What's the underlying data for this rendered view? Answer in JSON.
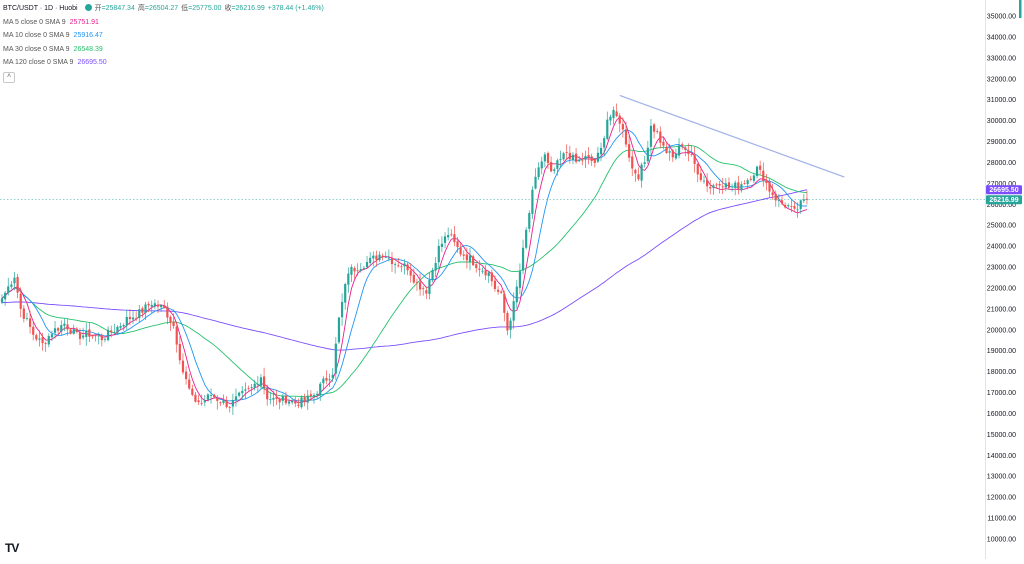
{
  "header": {
    "symbol": "BTC/USDT · 1D · Huobi",
    "open_label": "开",
    "open": "=25847.34",
    "high_label": "高",
    "high": "=26504.27",
    "low_label": "低",
    "low": "=25775.00",
    "close_label": "收",
    "close": "=26216.99",
    "change": "+378.44 (+1.46%)"
  },
  "legend": [
    {
      "label": "MA 5 close 0 SMA 9",
      "value": "25751.91",
      "color": "#e91e8c"
    },
    {
      "label": "MA 10 close 0 SMA 9",
      "value": "25916.47",
      "color": "#2196f3"
    },
    {
      "label": "MA 30 close 0 SMA 9",
      "value": "26548.39",
      "color": "#26c06b"
    },
    {
      "label": "MA 120 close 0 SMA 9",
      "value": "26695.50",
      "color": "#7c4dff"
    }
  ],
  "collapse_icon": "chevron-up-icon",
  "logo": "TV",
  "price_tags": {
    "ma120": {
      "value": "26695.50",
      "color": "#7c4dff"
    },
    "last": {
      "value": "26216.99",
      "color": "#26a69a"
    }
  },
  "colors": {
    "up": "#26a69a",
    "down": "#ef5350",
    "trendline": "#9fb0e8"
  },
  "chart_data": {
    "type": "candlestick",
    "y_axis": {
      "ticks": [
        "10000.00",
        "11000.00",
        "12000.00",
        "13000.00",
        "14000.00",
        "15000.00",
        "16000.00",
        "17000.00",
        "18000.00",
        "19000.00",
        "20000.00",
        "21000.00",
        "22000.00",
        "23000.00",
        "24000.00",
        "25000.00",
        "26000.00",
        "27000.00",
        "28000.00",
        "29000.00",
        "30000.00",
        "31000.00",
        "32000.00",
        "33000.00",
        "34000.00",
        "35000.00"
      ],
      "range": [
        10000,
        35000
      ]
    },
    "price_keypoints": [
      [
        0,
        21500
      ],
      [
        4,
        22600
      ],
      [
        6,
        21000
      ],
      [
        10,
        19800
      ],
      [
        13,
        19300
      ],
      [
        16,
        19900
      ],
      [
        20,
        20300
      ],
      [
        24,
        19700
      ],
      [
        28,
        19800
      ],
      [
        32,
        19600
      ],
      [
        36,
        20000
      ],
      [
        40,
        20500
      ],
      [
        44,
        20800
      ],
      [
        48,
        21300
      ],
      [
        52,
        21000
      ],
      [
        55,
        20200
      ],
      [
        58,
        18000
      ],
      [
        61,
        16700
      ],
      [
        64,
        16500
      ],
      [
        67,
        16900
      ],
      [
        70,
        16600
      ],
      [
        73,
        16400
      ],
      [
        76,
        16800
      ],
      [
        80,
        17200
      ],
      [
        83,
        17800
      ],
      [
        85,
        16800
      ],
      [
        88,
        16600
      ],
      [
        91,
        16700
      ],
      [
        94,
        16500
      ],
      [
        97,
        16600
      ],
      [
        100,
        16900
      ],
      [
        103,
        17500
      ],
      [
        106,
        18000
      ],
      [
        108,
        20500
      ],
      [
        111,
        22800
      ],
      [
        114,
        23000
      ],
      [
        118,
        23300
      ],
      [
        122,
        23700
      ],
      [
        126,
        23200
      ],
      [
        130,
        23000
      ],
      [
        133,
        22200
      ],
      [
        136,
        21900
      ],
      [
        140,
        23900
      ],
      [
        143,
        24600
      ],
      [
        145,
        24100
      ],
      [
        147,
        23700
      ],
      [
        150,
        23400
      ],
      [
        153,
        23000
      ],
      [
        156,
        22700
      ],
      [
        158,
        22000
      ],
      [
        160,
        21600
      ],
      [
        162,
        20000
      ],
      [
        164,
        21200
      ],
      [
        166,
        22800
      ],
      [
        168,
        24700
      ],
      [
        170,
        26500
      ],
      [
        172,
        27800
      ],
      [
        174,
        28300
      ],
      [
        176,
        27400
      ],
      [
        178,
        27900
      ],
      [
        181,
        28500
      ],
      [
        184,
        28000
      ],
      [
        187,
        28200
      ],
      [
        190,
        28000
      ],
      [
        192,
        28600
      ],
      [
        194,
        30100
      ],
      [
        196,
        30300
      ],
      [
        198,
        30000
      ],
      [
        200,
        29000
      ],
      [
        202,
        27700
      ],
      [
        204,
        27400
      ],
      [
        206,
        28000
      ],
      [
        208,
        29800
      ],
      [
        210,
        29400
      ],
      [
        212,
        28700
      ],
      [
        215,
        28200
      ],
      [
        218,
        28900
      ],
      [
        221,
        28200
      ],
      [
        224,
        27300
      ],
      [
        227,
        26800
      ],
      [
        230,
        27100
      ],
      [
        233,
        26800
      ],
      [
        236,
        26900
      ],
      [
        239,
        27200
      ],
      [
        242,
        27700
      ],
      [
        244,
        27300
      ],
      [
        246,
        26700
      ],
      [
        249,
        26100
      ],
      [
        252,
        25900
      ],
      [
        254,
        25600
      ],
      [
        256,
        26000
      ],
      [
        258,
        26216.99
      ]
    ],
    "ma_periods": {
      "ma5": 5,
      "ma10": 10,
      "ma30": 30,
      "ma120": 120
    },
    "ma120_prehistory_start": 21300,
    "trendline": {
      "start": {
        "bar": 198,
        "price": 31200
      },
      "end": {
        "bar": 270,
        "price": 27300
      }
    },
    "last_price": 26216.99,
    "ma120_last": 26695.5,
    "grid": false
  }
}
